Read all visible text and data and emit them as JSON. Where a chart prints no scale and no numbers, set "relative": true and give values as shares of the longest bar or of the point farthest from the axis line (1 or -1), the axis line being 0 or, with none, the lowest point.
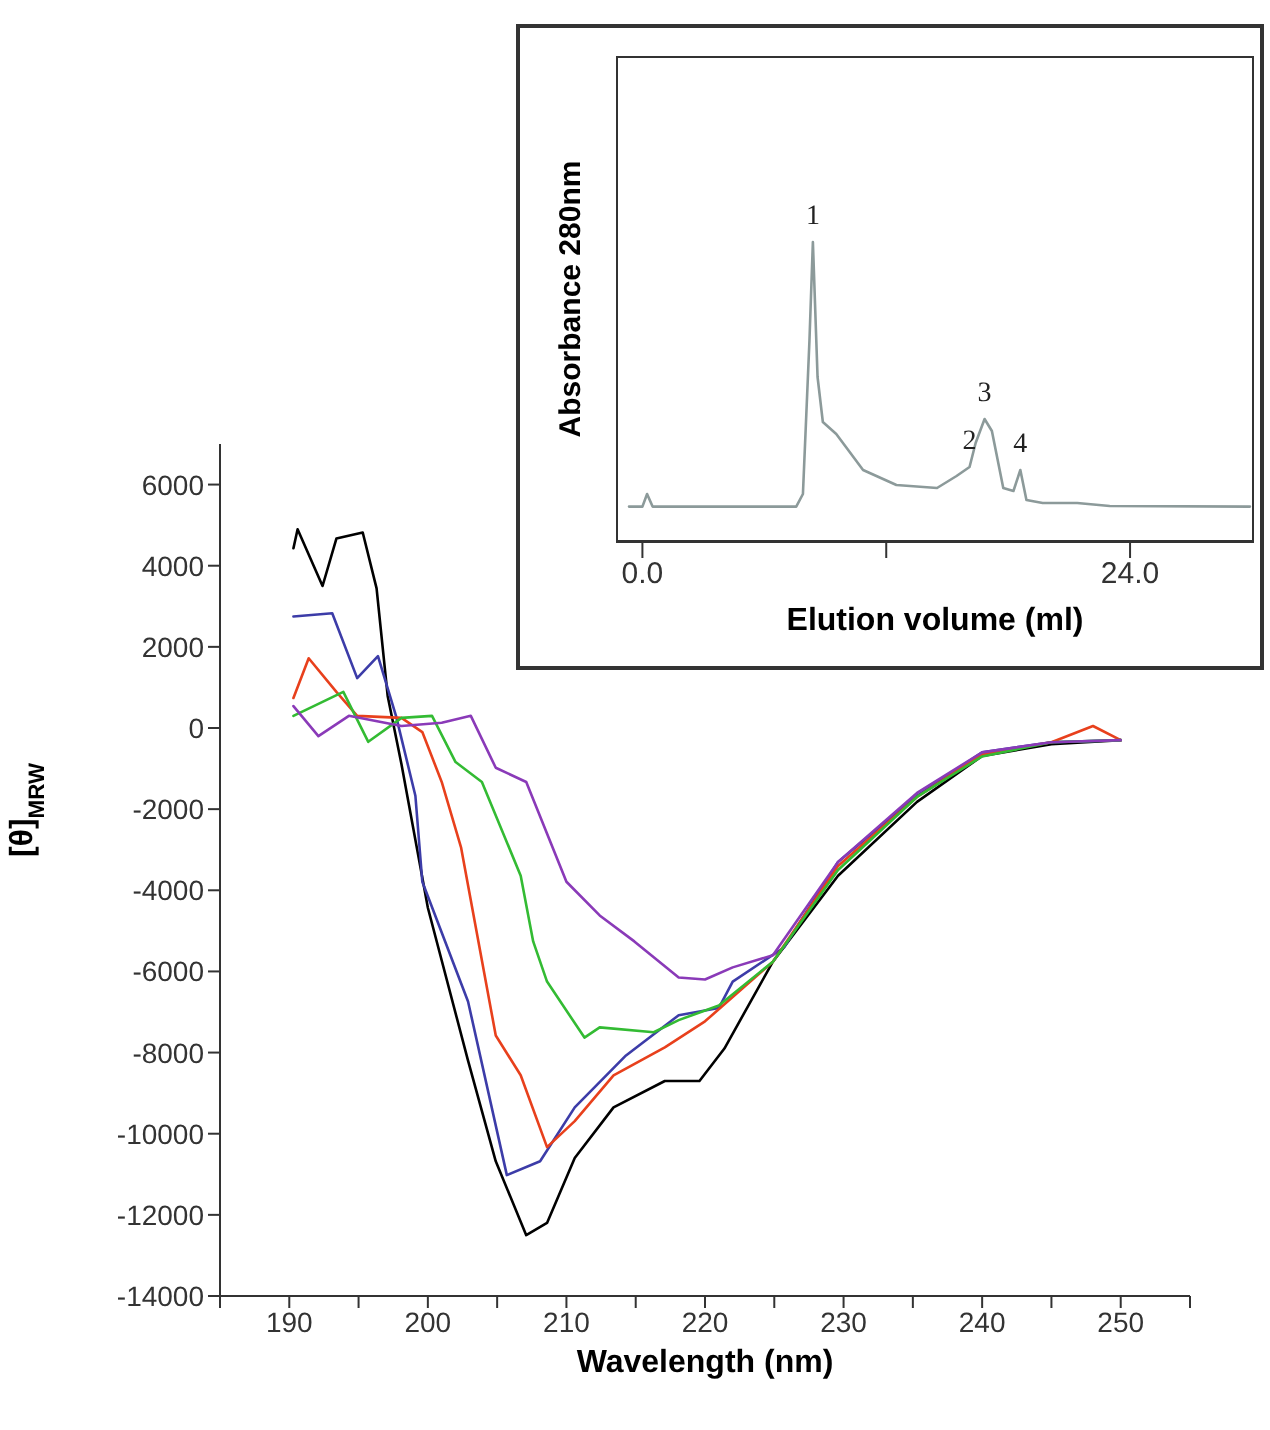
{
  "chart_data": [
    {
      "type": "line",
      "xlabel": "Wavelength (nm)",
      "ylabel": "[θ]$_{MRW}$",
      "xlim": [
        185,
        255
      ],
      "ylim": [
        -14000,
        7000
      ],
      "xticks": [
        {
          "value": 185,
          "label": null
        },
        190,
        {
          "value": 195,
          "label": null
        },
        200,
        {
          "value": 205,
          "label": null
        },
        210,
        {
          "value": 215,
          "label": null
        },
        220,
        {
          "value": 225,
          "label": null
        },
        230,
        {
          "value": 235,
          "label": null
        },
        240,
        {
          "value": 245,
          "label": null
        },
        250,
        {
          "value": 255,
          "label": null
        }
      ],
      "yticks": [
        -14000,
        -12000,
        -10000,
        -8000,
        -6000,
        -4000,
        -2000,
        0,
        2000,
        4000,
        6000
      ],
      "marker": "none",
      "line_style": "solid",
      "series": [
        {
          "color": "#000000",
          "x": [
            190.3,
            190.6,
            192.4,
            193.4,
            195.3,
            196.3,
            197.1,
            198.1,
            200,
            202.9,
            204.9,
            207.1,
            208.6,
            210.6,
            213.4,
            217.1,
            219.6,
            221.4,
            224.9,
            229.6,
            235.3,
            240,
            245,
            250
          ],
          "values": [
            4430,
            4900,
            3500,
            4670,
            4820,
            3440,
            790,
            -900,
            -4430,
            -8200,
            -10680,
            -12500,
            -12200,
            -10600,
            -9350,
            -8700,
            -8700,
            -7900,
            -5760,
            -3640,
            -1820,
            -690,
            -400,
            -300
          ]
        },
        {
          "color": "#3c3ca8",
          "x": [
            190.3,
            193.1,
            194.9,
            196.4,
            197.7,
            199.1,
            199.6,
            202.9,
            205.7,
            208.1,
            210.6,
            214.3,
            218.1,
            221,
            222,
            225.7,
            229.6,
            235.3,
            240,
            245,
            250
          ],
          "values": [
            2750,
            2830,
            1230,
            1770,
            300,
            -1670,
            -3790,
            -6740,
            -11020,
            -10680,
            -9350,
            -8070,
            -7080,
            -6900,
            -6250,
            -5410,
            -3300,
            -1670,
            -600,
            -350,
            -300
          ]
        },
        {
          "color": "#e8401c",
          "x": [
            190.3,
            191.4,
            193.4,
            194.9,
            198.1,
            199.6,
            201,
            202.4,
            204.9,
            206.7,
            208.6,
            210.6,
            213.4,
            217.1,
            220,
            224.9,
            229.6,
            235.3,
            240,
            245,
            248,
            250
          ],
          "values": [
            740,
            1720,
            890,
            300,
            250,
            -100,
            -1330,
            -2950,
            -7580,
            -8560,
            -10330,
            -9690,
            -8560,
            -7870,
            -7230,
            -5760,
            -3400,
            -1700,
            -650,
            -350,
            50,
            -300
          ]
        },
        {
          "color": "#33bb33",
          "x": [
            190.3,
            193.9,
            195.7,
            198.1,
            200.3,
            202,
            203.9,
            206.7,
            207.6,
            208.6,
            211.3,
            212.4,
            216.3,
            218.1,
            221,
            224.9,
            229.6,
            235.3,
            240,
            245,
            250
          ],
          "values": [
            300,
            890,
            -340,
            250,
            300,
            -840,
            -1330,
            -3640,
            -5260,
            -6250,
            -7630,
            -7380,
            -7500,
            -7200,
            -6840,
            -5760,
            -3500,
            -1700,
            -700,
            -350,
            -300
          ]
        },
        {
          "color": "#8a3ab8",
          "x": [
            190.3,
            192.1,
            194.3,
            198.1,
            201,
            203.1,
            204.9,
            207.1,
            210,
            212.4,
            214.9,
            218.1,
            220,
            222,
            224.9,
            229.6,
            235.3,
            240,
            245,
            250
          ],
          "values": [
            540,
            -200,
            300,
            50,
            130,
            300,
            -980,
            -1330,
            -3790,
            -4620,
            -5260,
            -6150,
            -6200,
            -5900,
            -5600,
            -3300,
            -1600,
            -600,
            -350,
            -300
          ]
        }
      ]
    },
    {
      "type": "line",
      "relative": true,
      "xlabel": "Elution volume (ml)",
      "ylabel": "Absorbance 280nm",
      "xlim": [
        -1.3,
        30.1
      ],
      "xticks": [
        {
          "value": 0,
          "label": "0.0"
        },
        {
          "value": 12,
          "label": null
        },
        {
          "value": 24,
          "label": "24.0"
        }
      ],
      "marker": "none",
      "line_style": "solid",
      "annotations": [
        {
          "text": "1",
          "x": 8.39,
          "y": 1.0
        },
        {
          "text": "2",
          "x": 16.1,
          "y": 0.25
        },
        {
          "text": "3",
          "x": 16.84,
          "y": 0.41
        },
        {
          "text": "4",
          "x": 18.6,
          "y": 0.24
        }
      ],
      "series": [
        {
          "color": "#8c9a9a",
          "x": [
            -0.66,
            0,
            0.23,
            0.5,
            7.57,
            7.9,
            8.22,
            8.39,
            8.62,
            8.88,
            9.54,
            10.86,
            12.5,
            14.5,
            15.46,
            16.1,
            16.4,
            16.84,
            17.2,
            17.76,
            18.26,
            18.6,
            18.9,
            19.7,
            21.4,
            23,
            29.9
          ],
          "values": [
            0.118,
            0.118,
            0.16,
            0.118,
            0.118,
            0.16,
            0.67,
            1.0,
            0.55,
            0.4,
            0.36,
            0.24,
            0.19,
            0.18,
            0.22,
            0.25,
            0.33,
            0.41,
            0.37,
            0.18,
            0.17,
            0.24,
            0.14,
            0.13,
            0.13,
            0.12,
            0.118
          ]
        }
      ]
    }
  ]
}
